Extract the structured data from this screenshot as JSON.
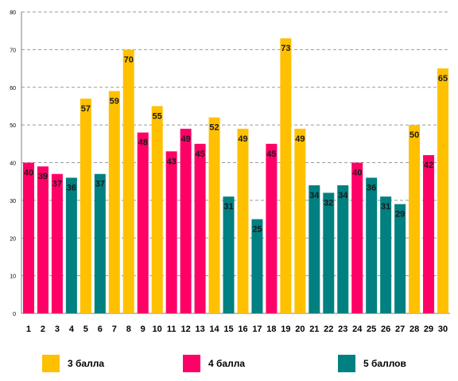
{
  "chart_data": {
    "type": "bar",
    "ylim": [
      0,
      80
    ],
    "yticks": [
      0,
      10,
      20,
      30,
      40,
      50,
      60,
      70,
      80
    ],
    "grid": "horizontal-dashed",
    "categories": [
      "1",
      "2",
      "3",
      "4",
      "5",
      "6",
      "7",
      "8",
      "9",
      "10",
      "11",
      "12",
      "13",
      "14",
      "15",
      "16",
      "17",
      "18",
      "19",
      "20",
      "21",
      "22",
      "23",
      "24",
      "25",
      "26",
      "27",
      "28",
      "29",
      "30"
    ],
    "values": [
      40,
      39,
      37,
      36,
      57,
      37,
      59,
      70,
      48,
      55,
      43,
      49,
      45,
      52,
      31,
      49,
      25,
      45,
      73,
      49,
      34,
      32,
      34,
      40,
      36,
      31,
      29,
      50,
      42,
      65
    ],
    "groups": [
      1,
      1,
      1,
      2,
      0,
      2,
      0,
      0,
      1,
      0,
      1,
      1,
      1,
      0,
      2,
      0,
      2,
      1,
      0,
      0,
      2,
      2,
      2,
      1,
      2,
      2,
      2,
      0,
      1,
      0
    ],
    "series": [
      {
        "name": "3 балла",
        "color": "#FFC000"
      },
      {
        "name": "4 балла",
        "color": "#FF0066"
      },
      {
        "name": "5 баллов",
        "color": "#008080"
      }
    ],
    "legend_position": "bottom"
  }
}
